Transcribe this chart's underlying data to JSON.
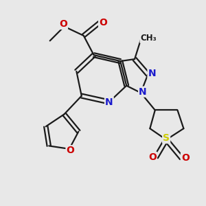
{
  "bg_color": "#e8e8e8",
  "bond_color": "#1a1a1a",
  "bond_width": 1.6,
  "atom_colors": {
    "N": "#1a1acc",
    "O": "#cc0000",
    "S": "#cccc00",
    "C": "#1a1a1a"
  },
  "figsize": [
    3.0,
    3.0
  ],
  "dpi": 100
}
